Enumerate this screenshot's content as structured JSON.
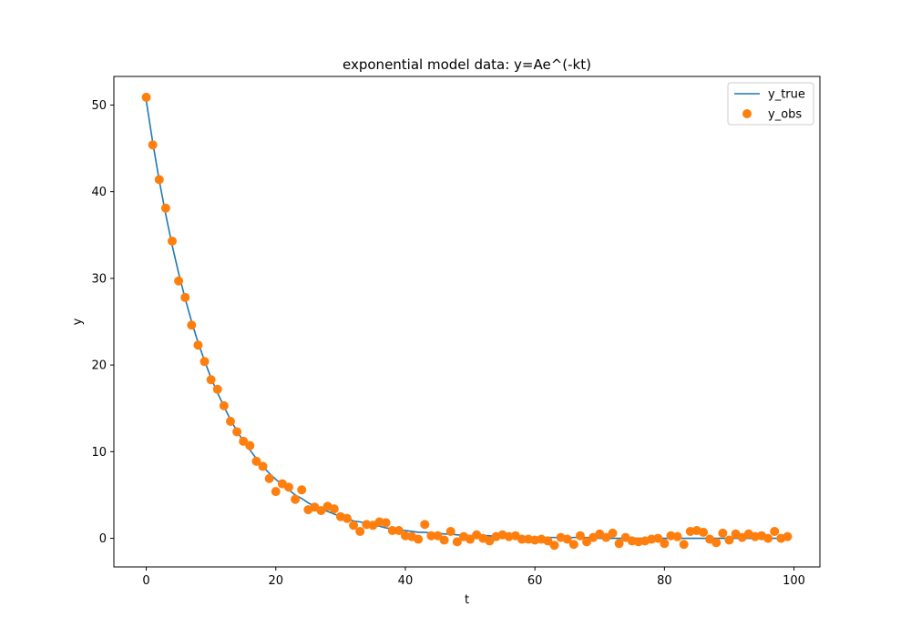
{
  "chart_data": {
    "type": "line",
    "title": "exponential model data: y=Ae^(-kt)",
    "xlabel": "t",
    "ylabel": "y",
    "xlim": [
      -5,
      104
    ],
    "ylim": [
      -3.3,
      53.3
    ],
    "xticks": [
      0,
      20,
      40,
      60,
      80,
      100
    ],
    "yticks": [
      0,
      10,
      20,
      30,
      40,
      50
    ],
    "grid": false,
    "legend_position": "top-right",
    "series": [
      {
        "name": "y_true",
        "kind": "line",
        "color": "#1f77b4",
        "x": [
          0,
          1,
          2,
          3,
          4,
          5,
          6,
          7,
          8,
          9,
          10,
          11,
          12,
          13,
          14,
          15,
          16,
          17,
          18,
          19,
          20,
          21,
          22,
          23,
          24,
          25,
          26,
          27,
          28,
          29,
          30,
          31,
          32,
          33,
          34,
          35,
          36,
          37,
          38,
          39,
          40,
          41,
          42,
          43,
          44,
          45,
          46,
          47,
          48,
          49,
          50,
          51,
          52,
          53,
          54,
          55,
          56,
          57,
          58,
          59,
          60,
          61,
          62,
          63,
          64,
          65,
          66,
          67,
          68,
          69,
          70,
          71,
          72,
          73,
          74,
          75,
          76,
          77,
          78,
          79,
          80,
          81,
          82,
          83,
          84,
          85,
          86,
          87,
          88,
          89,
          90,
          91,
          92,
          93,
          94,
          95,
          96,
          97,
          98,
          99
        ],
        "y": [
          50.5,
          45.7,
          41.3,
          37.4,
          33.8,
          30.6,
          27.7,
          25.0,
          22.6,
          20.5,
          18.5,
          16.8,
          15.2,
          13.7,
          12.4,
          11.2,
          10.2,
          9.2,
          8.3,
          7.5,
          6.8,
          6.2,
          5.6,
          5.0,
          4.6,
          4.1,
          3.7,
          3.4,
          3.1,
          2.8,
          2.5,
          2.3,
          2.0,
          1.9,
          1.7,
          1.5,
          1.4,
          1.2,
          1.1,
          1.0,
          0.9,
          0.8,
          0.7,
          0.7,
          0.6,
          0.6,
          0.5,
          0.5,
          0.4,
          0.4,
          0.3,
          0.3,
          0.3,
          0.3,
          0.2,
          0.2,
          0.2,
          0.2,
          0.2,
          0.1,
          0.1,
          0.1,
          0.1,
          0.1,
          0.1,
          0.1,
          0.1,
          0.1,
          0.1,
          0.1,
          0.0,
          0.0,
          0.0,
          0.0,
          0.0,
          0.0,
          0.0,
          0.0,
          0.0,
          0.0,
          0.0,
          0.0,
          0.0,
          0.0,
          0.0,
          0.0,
          0.0,
          0.0,
          0.0,
          0.0,
          0.0,
          0.0,
          0.0,
          0.0,
          0.0,
          0.0,
          0.0,
          0.0,
          0.0,
          0.0
        ]
      },
      {
        "name": "y_obs",
        "kind": "scatter",
        "color": "#ff7f0e",
        "x": [
          0,
          1,
          2,
          3,
          4,
          5,
          6,
          7,
          8,
          9,
          10,
          11,
          12,
          13,
          14,
          15,
          16,
          17,
          18,
          19,
          20,
          21,
          22,
          23,
          24,
          25,
          26,
          27,
          28,
          29,
          30,
          31,
          32,
          33,
          34,
          35,
          36,
          37,
          38,
          39,
          40,
          41,
          42,
          43,
          44,
          45,
          46,
          47,
          48,
          49,
          50,
          51,
          52,
          53,
          54,
          55,
          56,
          57,
          58,
          59,
          60,
          61,
          62,
          63,
          64,
          65,
          66,
          67,
          68,
          69,
          70,
          71,
          72,
          73,
          74,
          75,
          76,
          77,
          78,
          79,
          80,
          81,
          82,
          83,
          84,
          85,
          86,
          87,
          88,
          89,
          90,
          91,
          92,
          93,
          94,
          95,
          96,
          97,
          98,
          99
        ],
        "y": [
          50.9,
          45.4,
          41.4,
          38.1,
          34.3,
          29.7,
          27.8,
          24.6,
          22.3,
          20.4,
          18.3,
          17.2,
          15.3,
          13.5,
          12.3,
          11.2,
          10.7,
          8.9,
          8.3,
          6.9,
          5.4,
          6.3,
          5.9,
          4.5,
          5.6,
          3.3,
          3.6,
          3.2,
          3.7,
          3.4,
          2.5,
          2.3,
          1.5,
          0.8,
          1.6,
          1.5,
          1.9,
          1.8,
          0.9,
          0.9,
          0.3,
          0.2,
          -0.1,
          1.6,
          0.3,
          0.3,
          -0.2,
          0.8,
          -0.4,
          0.2,
          -0.1,
          0.4,
          0.0,
          -0.3,
          0.2,
          0.4,
          0.2,
          0.3,
          -0.1,
          -0.1,
          -0.2,
          -0.1,
          -0.3,
          -0.8,
          0.1,
          -0.1,
          -0.7,
          0.3,
          -0.4,
          0.1,
          0.5,
          0.1,
          0.6,
          -0.6,
          0.1,
          -0.3,
          -0.4,
          -0.3,
          -0.1,
          0.0,
          -0.6,
          0.3,
          0.2,
          -0.7,
          0.8,
          0.9,
          0.7,
          -0.1,
          -0.5,
          0.6,
          -0.2,
          0.5,
          0.1,
          0.5,
          0.2,
          0.3,
          0.0,
          0.8,
          0.0,
          0.2
        ]
      }
    ]
  }
}
